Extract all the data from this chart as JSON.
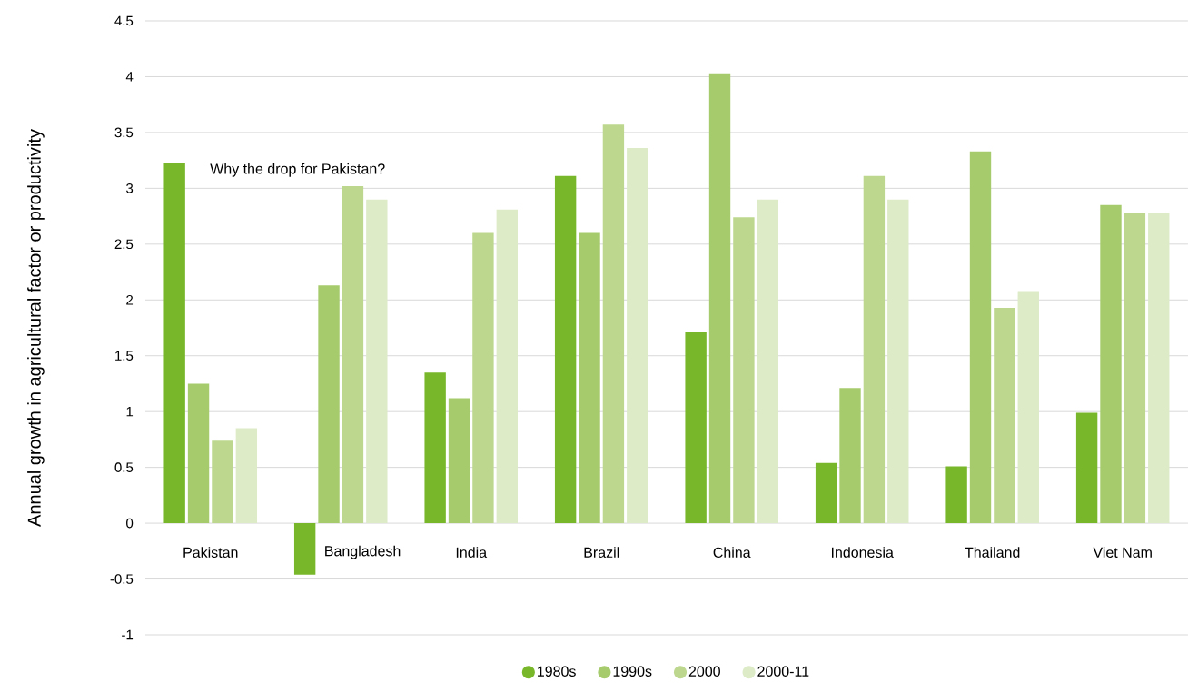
{
  "chart_data": {
    "type": "bar",
    "ylabel": "Annual growth in agricultural factor or productivity",
    "categories": [
      "Pakistan",
      "Bangladesh",
      "India",
      "Brazil",
      "China",
      "Indonesia",
      "Thailand",
      "Viet Nam"
    ],
    "series": [
      {
        "name": "1980s",
        "color": "#78b72a",
        "values": [
          3.23,
          -0.46,
          1.35,
          3.11,
          1.71,
          0.54,
          0.51,
          0.99
        ]
      },
      {
        "name": "1990s",
        "color": "#a6cb6c",
        "values": [
          1.25,
          2.13,
          1.12,
          2.6,
          4.03,
          1.21,
          3.33,
          2.85
        ]
      },
      {
        "name": "2000",
        "color": "#bdd88e",
        "values": [
          0.74,
          3.02,
          2.6,
          3.57,
          2.74,
          3.11,
          1.93,
          2.78
        ]
      },
      {
        "name": "2000-11",
        "color": "#ddebc7",
        "values": [
          0.85,
          2.9,
          2.81,
          3.36,
          2.9,
          2.9,
          2.08,
          2.78
        ]
      }
    ],
    "ylim": [
      -1,
      4.5
    ],
    "yticks": [
      -1,
      -0.5,
      0,
      0.5,
      1,
      1.5,
      2,
      2.5,
      3,
      3.5,
      4,
      4.5
    ],
    "grid": "y",
    "legend": "bottom",
    "annotations": [
      "Why the drop for Pakistan?"
    ]
  }
}
